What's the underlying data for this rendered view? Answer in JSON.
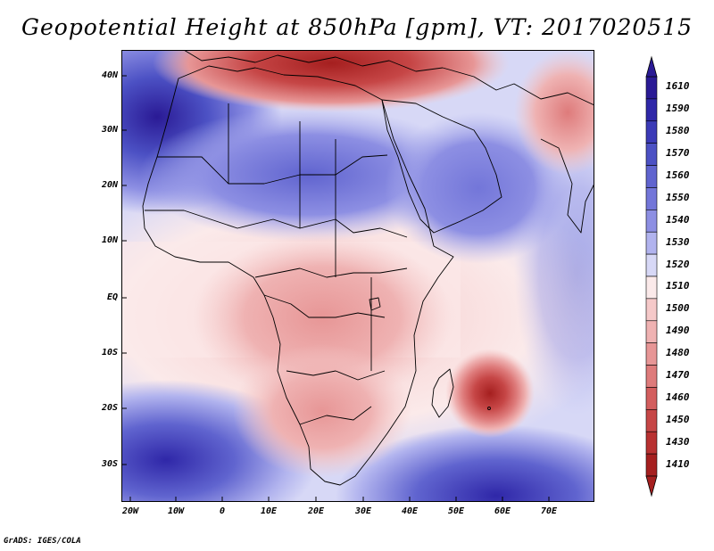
{
  "title": "Geopotential Height at 850hPa [gpm], VT: 2017020515",
  "credit": "GrADS: IGES/COLA",
  "map": {
    "lat_labels": [
      "40N",
      "30N",
      "20N",
      "10N",
      "EQ",
      "10S",
      "20S",
      "30S"
    ],
    "lon_labels": [
      "20W",
      "10W",
      "0",
      "10E",
      "20E",
      "30E",
      "40E",
      "50E",
      "60E",
      "70E"
    ]
  },
  "colorbar": {
    "levels": [
      "1610",
      "1590",
      "1580",
      "1570",
      "1560",
      "1550",
      "1540",
      "1530",
      "1520",
      "1510",
      "1500",
      "1490",
      "1480",
      "1470",
      "1460",
      "1450",
      "1430",
      "1410"
    ],
    "colors": [
      "#2a1a95",
      "#2f27a8",
      "#3b3ab7",
      "#4c51c4",
      "#6064cf",
      "#7376d9",
      "#8d8fe3",
      "#b1b3ee",
      "#d7d8f6",
      "#fbeaea",
      "#f5c9c9",
      "#efb2b2",
      "#e79696",
      "#de7b7b",
      "#d35e5e",
      "#c64646",
      "#b83131",
      "#a51f1f"
    ]
  },
  "chart_data": {
    "type": "heatmap",
    "title": "Geopotential Height at 850hPa [gpm], VT: 2017020515",
    "variable": "Geopotential Height",
    "level": "850hPa",
    "units": "gpm",
    "valid_time": "2017020515",
    "lon_range": [
      -25,
      80
    ],
    "lat_range": [
      -37,
      45
    ],
    "color_levels": [
      1410,
      1430,
      1450,
      1460,
      1470,
      1480,
      1490,
      1500,
      1510,
      1520,
      1530,
      1540,
      1550,
      1560,
      1570,
      1580,
      1590,
      1610
    ]
  }
}
